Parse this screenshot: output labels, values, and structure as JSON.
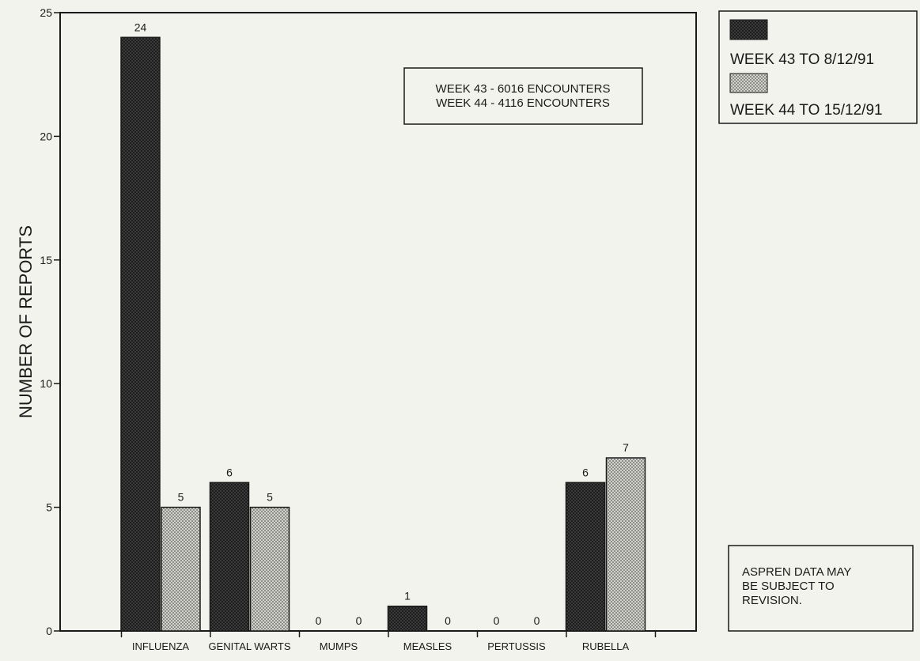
{
  "chart_data": {
    "type": "bar",
    "ylabel": "NUMBER OF REPORTS",
    "ylim": [
      0,
      25
    ],
    "yticks": [
      0,
      5,
      10,
      15,
      20,
      25
    ],
    "categories": [
      "INFLUENZA",
      "GENITAL WARTS",
      "MUMPS",
      "MEASLES",
      "PERTUSSIS",
      "RUBELLA"
    ],
    "series": [
      {
        "name": "WEEK 43 TO 8/12/91",
        "color": "#2f2f2f",
        "values": [
          24,
          6,
          0,
          1,
          0,
          6
        ]
      },
      {
        "name": "WEEK 44 TO 15/12/91",
        "color": "#bdbdb8",
        "values": [
          5,
          5,
          0,
          0,
          0,
          7
        ]
      }
    ],
    "grid": false,
    "legend_position": "top-right",
    "annotations": {
      "encounters": [
        "WEEK 43 - 6016 ENCOUNTERS",
        "WEEK 44 - 4116 ENCOUNTERS"
      ],
      "note": [
        "ASPREN DATA MAY",
        "BE SUBJECT TO",
        "REVISION."
      ]
    }
  }
}
